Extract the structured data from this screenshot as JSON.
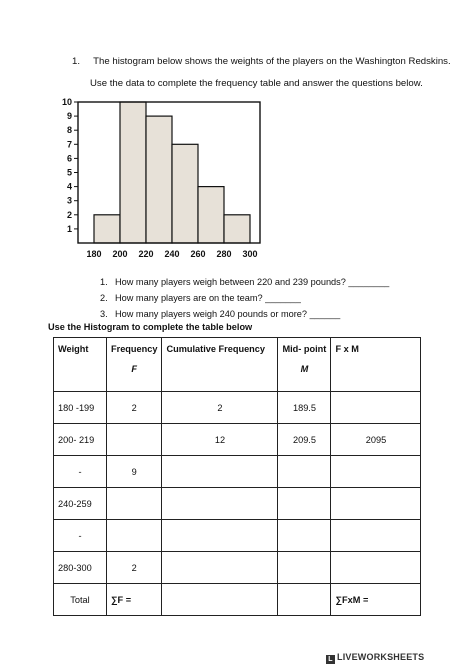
{
  "question1": {
    "number": "1.",
    "text": "The histogram below shows the weights of the players on the Washington Redskins.",
    "intro": "Use the data to complete the frequency table and answer the questions below."
  },
  "chart_data": {
    "type": "bar",
    "categories": [
      "180-200",
      "200-220",
      "220-240",
      "240-260",
      "260-280",
      "280-300"
    ],
    "values": [
      2,
      10,
      9,
      7,
      4,
      2
    ],
    "x_ticks": [
      "180",
      "200",
      "220",
      "240",
      "260",
      "280",
      "300"
    ],
    "y_ticks": [
      "1",
      "2",
      "3",
      "4",
      "5",
      "6",
      "7",
      "8",
      "9",
      "10"
    ],
    "ylim": [
      0,
      10
    ],
    "xlim": [
      180,
      300
    ],
    "bar_color": "#e7e1d8",
    "title": "",
    "xlabel": "",
    "ylabel": ""
  },
  "questions": [
    {
      "num": "1.",
      "text": "How many players weigh between 220 and 239 pounds? ________"
    },
    {
      "num": "2.",
      "text": "How many players are on the team? _______"
    },
    {
      "num": "3.",
      "text": "How many players weigh 240 pounds or more? ______"
    }
  ],
  "table_title": "Use the Histogram to complete the table below",
  "table": {
    "headers": {
      "weight": "Weight",
      "frequency": "Frequency",
      "frequency_sub": "F",
      "cumulative": "Cumulative Frequency",
      "midpoint": "Mid- point",
      "midpoint_sub": "M",
      "fxm": "F x M"
    },
    "rows": [
      {
        "weight": "180 -199",
        "f": "2",
        "cf": "2",
        "m": "189.5",
        "fxm": ""
      },
      {
        "weight": "200- 219",
        "f": "",
        "cf": "12",
        "m": "209.5",
        "fxm": "2095"
      },
      {
        "weight": "-",
        "f": "9",
        "cf": "",
        "m": "",
        "fxm": ""
      },
      {
        "weight": "240-259",
        "f": "",
        "cf": "",
        "m": "",
        "fxm": ""
      },
      {
        "weight": "-",
        "f": "",
        "cf": "",
        "m": "",
        "fxm": ""
      },
      {
        "weight": "280-300",
        "f": "2",
        "cf": "",
        "m": "",
        "fxm": ""
      }
    ],
    "total": {
      "label": "Total",
      "sum_f": "∑F =",
      "sum_fxm": "∑FxM ="
    }
  },
  "footer": {
    "brand": "LIVEWORKSHEETS"
  }
}
